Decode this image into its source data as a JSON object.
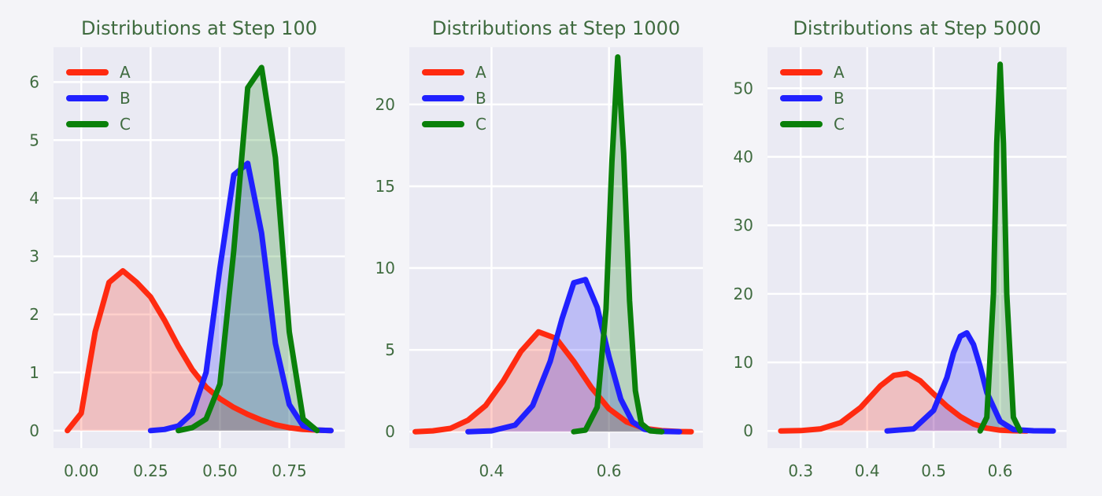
{
  "colors": {
    "A": "#ff2a10",
    "B": "#2020ff",
    "C": "#0a800a"
  },
  "chart_data": [
    {
      "type": "area",
      "title": "Distributions at Step 100",
      "xlim": [
        -0.1,
        0.95
      ],
      "ylim": [
        -0.3,
        6.6
      ],
      "xticks": [
        0.0,
        0.25,
        0.5,
        0.75
      ],
      "xtick_labels": [
        "0.00",
        "0.25",
        "0.50",
        "0.75"
      ],
      "yticks": [
        0,
        1,
        2,
        3,
        4,
        5,
        6
      ],
      "ytick_labels": [
        "0",
        "1",
        "2",
        "3",
        "4",
        "5",
        "6"
      ],
      "legend": [
        "A",
        "B",
        "C"
      ],
      "legend_position": "upper-left",
      "series": [
        {
          "name": "A",
          "color": "#ff2a10",
          "x": [
            -0.05,
            0.0,
            0.05,
            0.1,
            0.15,
            0.2,
            0.25,
            0.3,
            0.35,
            0.4,
            0.45,
            0.5,
            0.55,
            0.6,
            0.65,
            0.7,
            0.75,
            0.8,
            0.85,
            0.9
          ],
          "y": [
            0.0,
            0.3,
            1.7,
            2.55,
            2.75,
            2.55,
            2.3,
            1.9,
            1.45,
            1.05,
            0.75,
            0.55,
            0.4,
            0.28,
            0.18,
            0.1,
            0.05,
            0.02,
            0.01,
            0.0
          ]
        },
        {
          "name": "B",
          "color": "#2020ff",
          "x": [
            0.25,
            0.3,
            0.35,
            0.4,
            0.45,
            0.5,
            0.55,
            0.6,
            0.65,
            0.7,
            0.75,
            0.8,
            0.85,
            0.9
          ],
          "y": [
            0.0,
            0.02,
            0.08,
            0.3,
            1.0,
            2.8,
            4.4,
            4.6,
            3.4,
            1.5,
            0.45,
            0.08,
            0.01,
            0.0
          ]
        },
        {
          "name": "C",
          "color": "#0a800a",
          "x": [
            0.35,
            0.4,
            0.45,
            0.5,
            0.55,
            0.6,
            0.65,
            0.7,
            0.75,
            0.8,
            0.85
          ],
          "y": [
            0.0,
            0.05,
            0.2,
            0.8,
            3.1,
            5.9,
            6.25,
            4.7,
            1.7,
            0.2,
            0.0
          ]
        }
      ]
    },
    {
      "type": "area",
      "title": "Distributions at Step 1000",
      "xlim": [
        0.26,
        0.76
      ],
      "ylim": [
        -1.0,
        23.5
      ],
      "xticks": [
        0.4,
        0.6
      ],
      "xtick_labels": [
        "0.4",
        "0.6"
      ],
      "yticks": [
        0,
        5,
        10,
        15,
        20
      ],
      "ytick_labels": [
        "0",
        "5",
        "10",
        "15",
        "20"
      ],
      "legend": [
        "A",
        "B",
        "C"
      ],
      "legend_position": "upper-left",
      "series": [
        {
          "name": "A",
          "color": "#ff2a10",
          "x": [
            0.27,
            0.3,
            0.33,
            0.36,
            0.39,
            0.42,
            0.45,
            0.48,
            0.51,
            0.54,
            0.57,
            0.6,
            0.63,
            0.66,
            0.69,
            0.72,
            0.74
          ],
          "y": [
            0.0,
            0.05,
            0.2,
            0.7,
            1.6,
            3.1,
            4.9,
            6.1,
            5.7,
            4.3,
            2.7,
            1.4,
            0.6,
            0.2,
            0.06,
            0.01,
            0.0
          ]
        },
        {
          "name": "B",
          "color": "#2020ff",
          "x": [
            0.36,
            0.4,
            0.44,
            0.47,
            0.5,
            0.52,
            0.54,
            0.56,
            0.58,
            0.6,
            0.62,
            0.64,
            0.66,
            0.68,
            0.72
          ],
          "y": [
            0.0,
            0.05,
            0.4,
            1.6,
            4.3,
            6.9,
            9.1,
            9.3,
            7.6,
            4.6,
            2.0,
            0.6,
            0.15,
            0.03,
            0.0
          ]
        },
        {
          "name": "C",
          "color": "#0a800a",
          "x": [
            0.54,
            0.56,
            0.58,
            0.595,
            0.605,
            0.615,
            0.625,
            0.635,
            0.645,
            0.655,
            0.67,
            0.69
          ],
          "y": [
            0.0,
            0.1,
            1.5,
            7.5,
            16.5,
            22.9,
            17.0,
            8.0,
            2.5,
            0.5,
            0.05,
            0.0
          ]
        }
      ]
    },
    {
      "type": "area",
      "title": "Distributions at Step 5000",
      "xlim": [
        0.25,
        0.7
      ],
      "ylim": [
        -2.5,
        56.0
      ],
      "xticks": [
        0.3,
        0.4,
        0.5,
        0.6
      ],
      "xtick_labels": [
        "0.3",
        "0.4",
        "0.5",
        "0.6"
      ],
      "yticks": [
        0,
        10,
        20,
        30,
        40,
        50
      ],
      "ytick_labels": [
        "0",
        "10",
        "20",
        "30",
        "40",
        "50"
      ],
      "legend": [
        "A",
        "B",
        "C"
      ],
      "legend_position": "upper-left",
      "series": [
        {
          "name": "A",
          "color": "#ff2a10",
          "x": [
            0.27,
            0.3,
            0.33,
            0.36,
            0.39,
            0.42,
            0.44,
            0.46,
            0.48,
            0.5,
            0.52,
            0.54,
            0.56,
            0.58,
            0.6,
            0.62,
            0.64
          ],
          "y": [
            0.0,
            0.05,
            0.3,
            1.2,
            3.4,
            6.6,
            8.1,
            8.4,
            7.3,
            5.4,
            3.6,
            2.1,
            1.0,
            0.4,
            0.1,
            0.02,
            0.0
          ]
        },
        {
          "name": "B",
          "color": "#2020ff",
          "x": [
            0.43,
            0.47,
            0.5,
            0.52,
            0.53,
            0.54,
            0.55,
            0.56,
            0.57,
            0.58,
            0.6,
            0.62,
            0.65,
            0.68
          ],
          "y": [
            0.0,
            0.3,
            3.0,
            7.8,
            11.4,
            13.8,
            14.3,
            12.6,
            9.4,
            5.6,
            1.4,
            0.2,
            0.02,
            0.0
          ]
        },
        {
          "name": "C",
          "color": "#0a800a",
          "x": [
            0.57,
            0.58,
            0.59,
            0.595,
            0.6,
            0.605,
            0.61,
            0.62,
            0.63
          ],
          "y": [
            0.0,
            2.0,
            20.0,
            42.0,
            53.5,
            42.0,
            20.0,
            2.0,
            0.0
          ]
        }
      ]
    }
  ]
}
